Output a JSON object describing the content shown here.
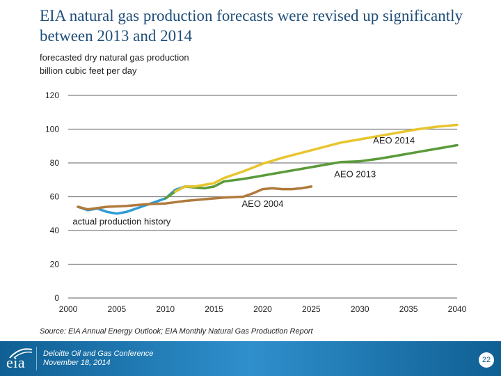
{
  "title": "EIA natural gas production forecasts were revised up significantly between 2013 and 2014",
  "subtitle_line1": "forecasted dry natural gas production",
  "subtitle_line2": "billion cubic feet per day",
  "source": "Source: EIA Annual Energy Outlook; EIA Monthly Natural Gas Production Report",
  "footer": {
    "logo_text": "eia",
    "conference": "Deloitte Oil and Gas Conference",
    "date": "November 18, 2014",
    "page_number": "22"
  },
  "chart_data": {
    "type": "line",
    "title": "",
    "xlabel": "",
    "ylabel": "billion cubic feet per day",
    "xlim": [
      2000,
      2040
    ],
    "ylim": [
      0,
      120
    ],
    "x_ticks": [
      2000,
      2005,
      2010,
      2015,
      2020,
      2025,
      2030,
      2035,
      2040
    ],
    "y_ticks": [
      0,
      20,
      40,
      60,
      80,
      100,
      120
    ],
    "grid": true,
    "series": [
      {
        "name": "actual production history",
        "color": "#2e9bd6",
        "x": [
          2001,
          2002,
          2003,
          2004,
          2005,
          2006,
          2007,
          2008,
          2009,
          2010,
          2011,
          2012,
          2013
        ],
        "y": [
          54,
          52,
          53,
          51,
          50,
          51,
          53,
          55,
          57,
          59,
          64,
          66,
          66
        ]
      },
      {
        "name": "AEO 2004",
        "color": "#b07a3c",
        "x": [
          2001,
          2002,
          2004,
          2006,
          2008,
          2010,
          2012,
          2014,
          2016,
          2018,
          2019,
          2020,
          2021,
          2022,
          2023,
          2024,
          2025
        ],
        "y": [
          54,
          52.5,
          54,
          54.5,
          55.5,
          56,
          57.5,
          58.5,
          59.5,
          60,
          62,
          64.5,
          65,
          64.5,
          64.5,
          65,
          66
        ]
      },
      {
        "name": "AEO 2013",
        "color": "#5a9a3a",
        "x": [
          2010,
          2011,
          2012,
          2013,
          2014,
          2015,
          2016,
          2018,
          2020,
          2022,
          2024,
          2026,
          2028,
          2030,
          2032,
          2034,
          2036,
          2038,
          2040
        ],
        "y": [
          59,
          63,
          66,
          65.5,
          65,
          66,
          69,
          70.5,
          72.5,
          74.5,
          76.5,
          78.5,
          80.5,
          81,
          82.5,
          84.5,
          86.5,
          88.5,
          90.5
        ]
      },
      {
        "name": "AEO 2014",
        "color": "#e8c52e",
        "x": [
          2011,
          2012,
          2013,
          2014,
          2015,
          2016,
          2018,
          2020,
          2022,
          2024,
          2026,
          2028,
          2030,
          2032,
          2034,
          2036,
          2038,
          2040
        ],
        "y": [
          63,
          66,
          66,
          67,
          68,
          71,
          75,
          79.5,
          83,
          86,
          89,
          92,
          94,
          96,
          98,
          100,
          101.5,
          102.5
        ]
      }
    ],
    "annotations": [
      {
        "text": "AEO 2014",
        "x": 2033.5,
        "y": 91.5
      },
      {
        "text": "AEO 2013",
        "x": 2029.5,
        "y": 71.5
      },
      {
        "text": "AEO 2004",
        "x": 2020,
        "y": 54
      },
      {
        "text": "actual production history",
        "x": 2005.5,
        "y": 43.5
      }
    ]
  }
}
